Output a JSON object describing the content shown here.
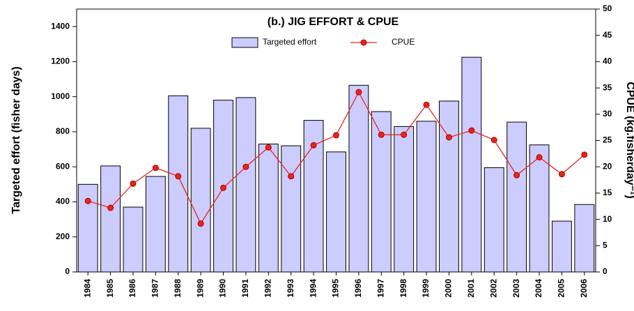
{
  "chart_data": {
    "type": "bar_line",
    "title": "(b.) JIG EFFORT & CPUE",
    "ylabel": "Targeted effort (fisher days)",
    "y2label": "CPUE (kg.fisherday⁻¹)",
    "categories": [
      "1984",
      "1985",
      "1986",
      "1987",
      "1988",
      "1989",
      "1990",
      "1991",
      "1992",
      "1993",
      "1994",
      "1995",
      "1996",
      "1997",
      "1998",
      "1999",
      "2000",
      "2001",
      "2002",
      "2003",
      "2004",
      "2005",
      "2006"
    ],
    "series": [
      {
        "name": "Targeted effort",
        "type": "bar",
        "color": "#ccccff",
        "values": [
          500,
          605,
          370,
          545,
          1005,
          820,
          980,
          995,
          730,
          720,
          865,
          685,
          1065,
          915,
          830,
          860,
          975,
          1225,
          595,
          855,
          725,
          290,
          385
        ]
      },
      {
        "name": "CPUE",
        "type": "line",
        "axis": "y2",
        "color": "#e8251c",
        "values": [
          13.5,
          12.2,
          16.8,
          19.8,
          18.2,
          9.2,
          16.0,
          20.0,
          23.7,
          18.2,
          24.1,
          26.0,
          34.2,
          26.1,
          26.1,
          31.8,
          25.6,
          26.9,
          25.1,
          18.4,
          21.8,
          18.6,
          22.3
        ]
      }
    ],
    "ylim": [
      0,
      1500
    ],
    "yticks": [
      0,
      200,
      400,
      600,
      800,
      1000,
      1200,
      1400
    ],
    "y2lim": [
      0,
      50
    ],
    "y2ticks": [
      0,
      5,
      10,
      15,
      20,
      25,
      30,
      35,
      40,
      45,
      50
    ],
    "grid": false,
    "legend": "top"
  }
}
